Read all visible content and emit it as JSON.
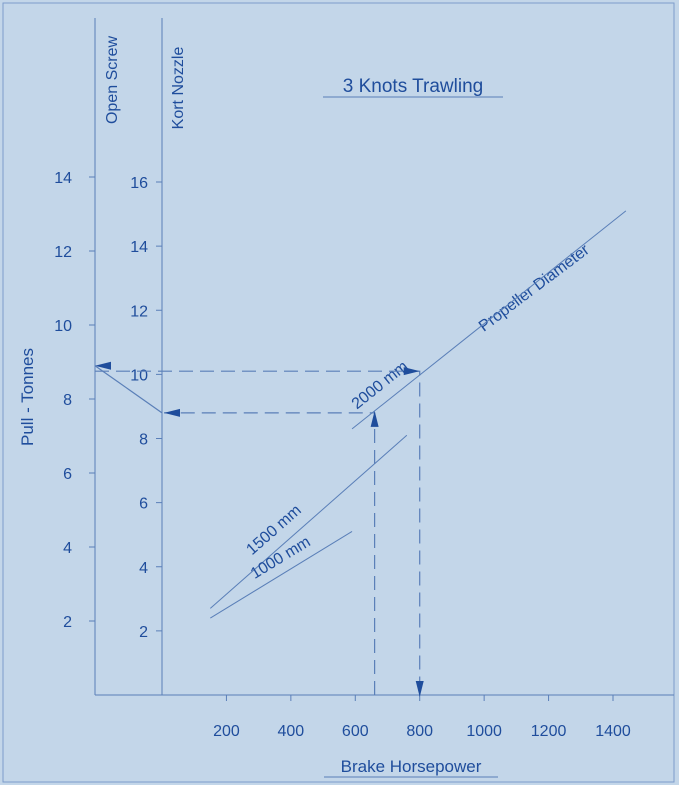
{
  "colors": {
    "background": "#c3d6e9",
    "ink": "#1f4d9c",
    "thin_line": "#5a7fb8",
    "frame": "#7d9ccb"
  },
  "chart_data": {
    "type": "line",
    "title": "3 Knots Trawling",
    "xlabel": "Brake Horsepower",
    "ylabel": "Pull - Tonnes",
    "xlim": [
      0,
      1400
    ],
    "x_ticks": [
      200,
      400,
      600,
      800,
      1000,
      1200,
      1400
    ],
    "open_screw_axis": {
      "label": "Open Screw",
      "ticks": [
        2,
        4,
        6,
        8,
        10,
        12,
        14
      ],
      "range": [
        0,
        14
      ]
    },
    "kort_nozzle_axis": {
      "label": "Kort Nozzle",
      "ticks": [
        2,
        4,
        6,
        8,
        10,
        12,
        14,
        16
      ],
      "range": [
        0,
        16
      ]
    },
    "series": [
      {
        "name": "2000 mm",
        "x": [
          590,
          1440
        ],
        "y": [
          8.3,
          15.1
        ]
      },
      {
        "name": "1500 mm",
        "x": [
          150,
          760
        ],
        "y": [
          2.7,
          8.1
        ]
      },
      {
        "name": "1000 mm",
        "x": [
          150,
          590
        ],
        "y": [
          2.4,
          5.1
        ]
      }
    ],
    "annotations": {
      "propeller_label": "Propeller Diameter",
      "example_path": {
        "bhp": 800,
        "kort_pull_at_2000": 10.1,
        "open_screw_pull": 8.9,
        "bhp_1500": 660,
        "kort_pull_at_1500": 8.8
      }
    }
  }
}
